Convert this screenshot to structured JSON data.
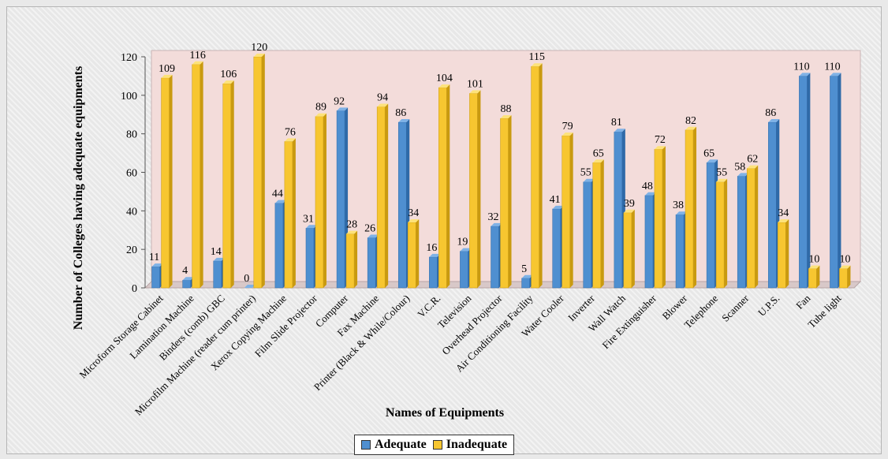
{
  "colors": {
    "adequate": "#4f8fd0",
    "adequate_dark": "#2f6aa8",
    "adequate_top": "#7fb2e6",
    "inadequate": "#f7c630",
    "inadequate_dark": "#c99a10",
    "inadequate_top": "#fde27a",
    "plot_back": "#f3dcda",
    "plot_floor": "#d8c8c8"
  },
  "chart_data": {
    "type": "bar",
    "xlabel": "Names of Equipments",
    "ylabel": "Number of Colleges having adequate equipments",
    "ylim": [
      0,
      120
    ],
    "yticks": [
      0,
      20,
      40,
      60,
      80,
      100,
      120
    ],
    "legend_position": "bottom",
    "categories": [
      "Microform Storage Cabinet",
      "Lamination Machine",
      "Binders (comb) GBC",
      "Microfilm Machine (reader cum printer)",
      "Xerox Copying Machine",
      "Film Slide Projector",
      "Computer",
      "Fax Machine",
      "Printer (Black & While/Colour)",
      "V.C.R.",
      "Television",
      "Overhead Projector",
      "Air Conditioning Facility",
      "Water Cooler",
      "Inverter",
      "Wall Watch",
      "Fire Extinguisher",
      "Blower",
      "Telephone",
      "Scanner",
      "U.P.S.",
      "Fan",
      "Tube light"
    ],
    "series": [
      {
        "name": "Adequate",
        "values": [
          11,
          4,
          14,
          0,
          44,
          31,
          92,
          26,
          86,
          16,
          19,
          32,
          5,
          41,
          55,
          81,
          48,
          38,
          65,
          58,
          86,
          110,
          110
        ]
      },
      {
        "name": "Inadequate",
        "values": [
          109,
          116,
          106,
          120,
          76,
          89,
          28,
          94,
          34,
          104,
          101,
          88,
          115,
          79,
          65,
          39,
          72,
          82,
          55,
          62,
          34,
          10,
          10
        ]
      }
    ]
  }
}
